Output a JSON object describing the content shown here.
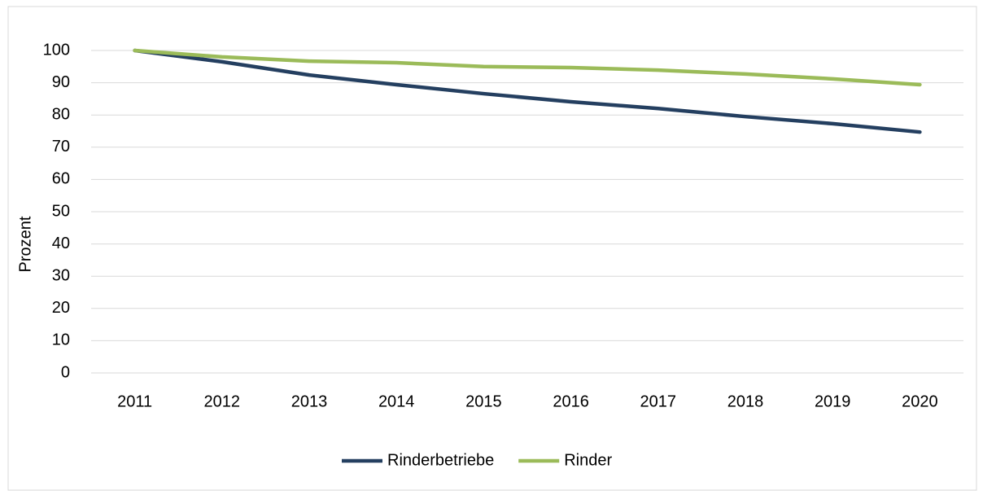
{
  "chart_data": {
    "type": "line",
    "y_label": "Prozent",
    "categories": [
      "2011",
      "2012",
      "2013",
      "2014",
      "2015",
      "2016",
      "2017",
      "2018",
      "2019",
      "2020"
    ],
    "series": [
      {
        "name": "Rinderbetriebe",
        "color": "#243f60",
        "values": [
          100,
          96.5,
          92.4,
          89.4,
          86.6,
          84.1,
          82,
          79.5,
          77.3,
          74.7
        ]
      },
      {
        "name": "Rinder",
        "color": "#9bbb59",
        "values": [
          100,
          98,
          96.7,
          96.2,
          95,
          94.7,
          93.9,
          92.7,
          91.2,
          89.4
        ]
      }
    ],
    "ylim": [
      0,
      100
    ],
    "yticks": [
      0,
      10,
      20,
      30,
      40,
      50,
      60,
      70,
      80,
      90,
      100
    ],
    "grid": true,
    "legend": "bottom"
  }
}
